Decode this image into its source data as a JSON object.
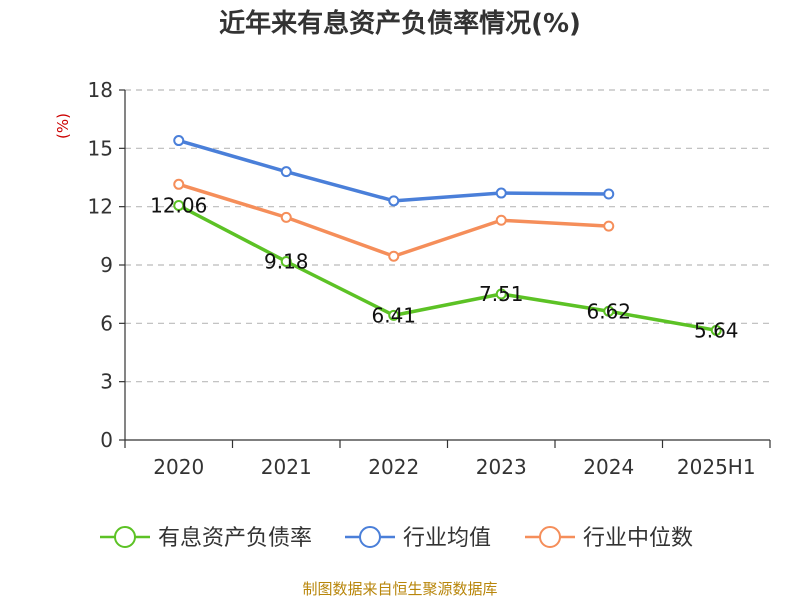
{
  "chart_data": {
    "type": "line",
    "title": "近年来有息资产负债率情况(%)",
    "ylabel": "(%)",
    "ylim": [
      0,
      18
    ],
    "yticks": [
      "0",
      "3",
      "6",
      "9",
      "12",
      "15",
      "18"
    ],
    "categories": [
      "2020",
      "2021",
      "2022",
      "2023",
      "2024",
      "2025H1"
    ],
    "grid": true,
    "legend_position": "bottom",
    "series": [
      {
        "name": "有息资产负债率",
        "color": "#5cc225",
        "values": [
          12.06,
          9.18,
          6.41,
          7.51,
          6.62,
          5.64
        ],
        "labels": [
          "12.06",
          "9.18",
          "6.41",
          "7.51",
          "6.62",
          "5.64"
        ]
      },
      {
        "name": "行业均值",
        "color": "#4a7fd9",
        "values": [
          15.4,
          13.8,
          12.3,
          12.7,
          12.65,
          null
        ]
      },
      {
        "name": "行业中位数",
        "color": "#f58e5a",
        "values": [
          13.15,
          11.45,
          9.45,
          11.3,
          11.0,
          null
        ]
      }
    ],
    "source": "制图数据来自恒生聚源数据库"
  }
}
